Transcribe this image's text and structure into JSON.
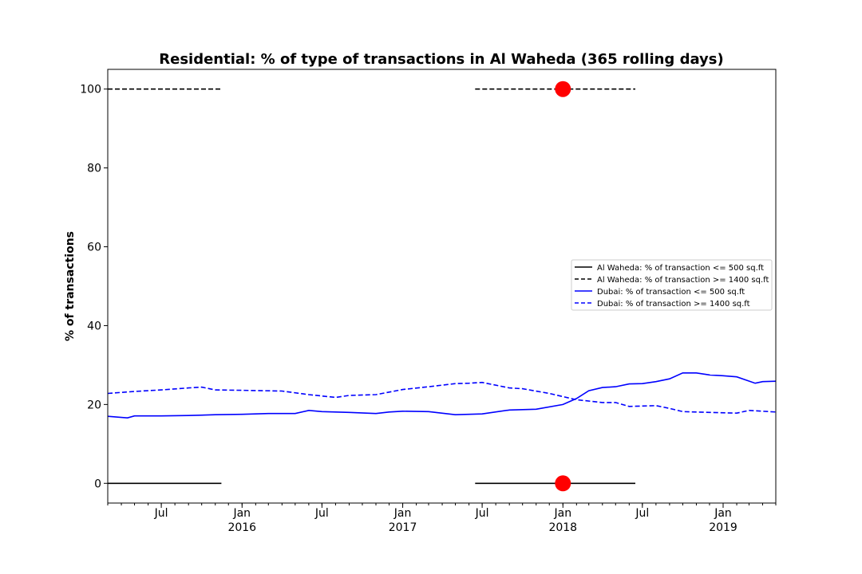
{
  "chart_data": {
    "type": "line",
    "title": "Residential: % of type of transactions in Al Waheda (365 rolling days)",
    "xlabel": "",
    "ylabel": "% of transactions",
    "xlim": [
      "2015-03-01",
      "2019-05-01"
    ],
    "ylim": [
      -5,
      105
    ],
    "y_ticks": [
      0,
      20,
      40,
      60,
      80,
      100
    ],
    "x_ticks": [
      {
        "date": "2015-07-01",
        "label": "Jul",
        "label2": ""
      },
      {
        "date": "2016-01-01",
        "label": "Jan",
        "label2": "2016"
      },
      {
        "date": "2016-07-01",
        "label": "Jul",
        "label2": ""
      },
      {
        "date": "2017-01-01",
        "label": "Jan",
        "label2": "2017"
      },
      {
        "date": "2017-07-01",
        "label": "Jul",
        "label2": ""
      },
      {
        "date": "2018-01-01",
        "label": "Jan",
        "label2": "2018"
      },
      {
        "date": "2018-07-01",
        "label": "Jul",
        "label2": ""
      },
      {
        "date": "2019-01-01",
        "label": "Jan",
        "label2": "2019"
      }
    ],
    "grid": false,
    "legend_position": "center-right",
    "series": [
      {
        "name": "Al Waheda: % of transaction <= 500 sq.ft",
        "color": "#000000",
        "dash": "solid",
        "segments": [
          [
            [
              "2015-03-01",
              0
            ],
            [
              "2015-11-15",
              0
            ]
          ],
          [
            [
              "2017-06-15",
              0
            ],
            [
              "2018-06-15",
              0
            ]
          ]
        ]
      },
      {
        "name": "Al Waheda: % of transaction >= 1400 sq.ft",
        "color": "#000000",
        "dash": "dashed",
        "segments": [
          [
            [
              "2015-03-01",
              100
            ],
            [
              "2015-11-15",
              100
            ]
          ],
          [
            [
              "2017-06-15",
              100
            ],
            [
              "2018-06-15",
              100
            ]
          ]
        ]
      },
      {
        "name": "Dubai: % of transaction <= 500 sq.ft",
        "color": "#0000ff",
        "dash": "solid",
        "points": [
          [
            "2015-03-01",
            17.0
          ],
          [
            "2015-04-15",
            16.6
          ],
          [
            "2015-05-01",
            17.1
          ],
          [
            "2015-07-01",
            17.1
          ],
          [
            "2015-09-01",
            17.2
          ],
          [
            "2015-11-01",
            17.4
          ],
          [
            "2016-01-01",
            17.5
          ],
          [
            "2016-03-01",
            17.7
          ],
          [
            "2016-05-01",
            17.7
          ],
          [
            "2016-06-01",
            18.5
          ],
          [
            "2016-07-01",
            18.2
          ],
          [
            "2016-09-01",
            18.0
          ],
          [
            "2016-11-01",
            17.7
          ],
          [
            "2016-12-01",
            18.1
          ],
          [
            "2017-01-01",
            18.3
          ],
          [
            "2017-03-01",
            18.2
          ],
          [
            "2017-05-01",
            17.4
          ],
          [
            "2017-07-01",
            17.6
          ],
          [
            "2017-09-01",
            18.6
          ],
          [
            "2017-11-01",
            18.8
          ],
          [
            "2018-01-01",
            20.0
          ],
          [
            "2018-02-01",
            21.5
          ],
          [
            "2018-03-01",
            23.5
          ],
          [
            "2018-04-01",
            24.3
          ],
          [
            "2018-05-01",
            24.5
          ],
          [
            "2018-06-01",
            25.2
          ],
          [
            "2018-07-01",
            25.3
          ],
          [
            "2018-08-01",
            25.8
          ],
          [
            "2018-09-01",
            26.5
          ],
          [
            "2018-10-01",
            28.0
          ],
          [
            "2018-11-01",
            28.0
          ],
          [
            "2018-12-01",
            27.5
          ],
          [
            "2019-01-01",
            27.3
          ],
          [
            "2019-02-01",
            27.0
          ],
          [
            "2019-03-15",
            25.4
          ],
          [
            "2019-04-01",
            25.8
          ],
          [
            "2019-05-01",
            25.9
          ]
        ]
      },
      {
        "name": "Dubai: % of transaction >= 1400 sq.ft",
        "color": "#0000ff",
        "dash": "dashed",
        "points": [
          [
            "2015-03-01",
            22.8
          ],
          [
            "2015-05-01",
            23.3
          ],
          [
            "2015-07-01",
            23.7
          ],
          [
            "2015-09-01",
            24.2
          ],
          [
            "2015-10-01",
            24.4
          ],
          [
            "2015-11-01",
            23.7
          ],
          [
            "2016-01-01",
            23.6
          ],
          [
            "2016-04-01",
            23.4
          ],
          [
            "2016-06-01",
            22.5
          ],
          [
            "2016-08-01",
            21.8
          ],
          [
            "2016-09-01",
            22.3
          ],
          [
            "2016-11-01",
            22.5
          ],
          [
            "2017-01-01",
            23.8
          ],
          [
            "2017-03-01",
            24.5
          ],
          [
            "2017-05-01",
            25.3
          ],
          [
            "2017-06-01",
            25.4
          ],
          [
            "2017-07-01",
            25.6
          ],
          [
            "2017-09-01",
            24.2
          ],
          [
            "2017-10-01",
            24.0
          ],
          [
            "2017-12-01",
            22.8
          ],
          [
            "2018-01-01",
            22.0
          ],
          [
            "2018-02-01",
            21.2
          ],
          [
            "2018-04-01",
            20.5
          ],
          [
            "2018-05-01",
            20.5
          ],
          [
            "2018-06-01",
            19.5
          ],
          [
            "2018-08-01",
            19.7
          ],
          [
            "2018-09-01",
            19.0
          ],
          [
            "2018-10-01",
            18.2
          ],
          [
            "2018-12-01",
            18.0
          ],
          [
            "2019-02-01",
            17.8
          ],
          [
            "2019-03-01",
            18.5
          ],
          [
            "2019-05-01",
            18.1
          ]
        ]
      }
    ],
    "markers": [
      {
        "date": "2018-01-01",
        "value": 100,
        "color": "#ff0000"
      },
      {
        "date": "2018-01-01",
        "value": 0,
        "color": "#ff0000"
      }
    ]
  }
}
